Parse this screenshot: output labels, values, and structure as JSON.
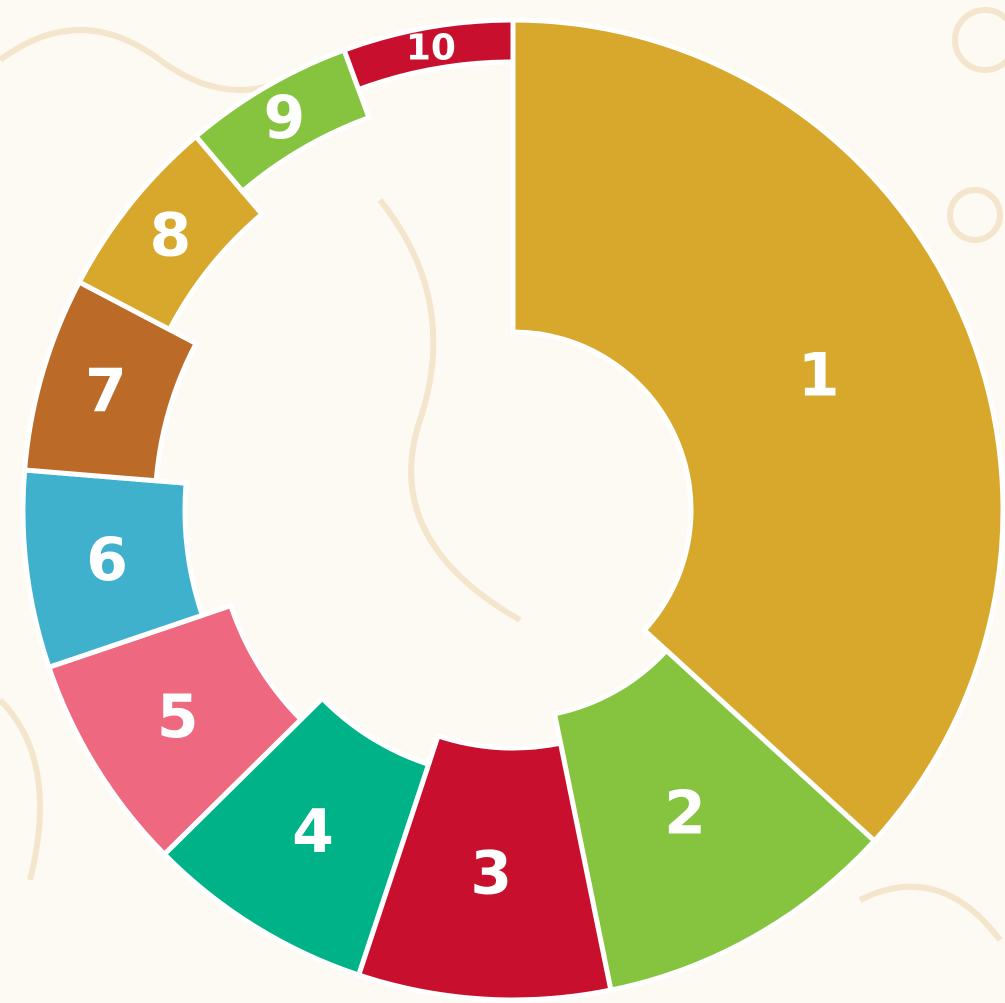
{
  "chart_data": {
    "type": "pie",
    "categories": [
      "1",
      "2",
      "3",
      "4",
      "5",
      "6",
      "7",
      "8",
      "9",
      "10"
    ],
    "values": [
      36.8,
      10,
      8.3,
      7.5,
      7.2,
      6.5,
      6.4,
      6.1,
      5.6,
      5.6
    ],
    "colors": [
      "#d7a82b",
      "#86c440",
      "#c8102e",
      "#00b287",
      "#ee6880",
      "#40b1cc",
      "#bb6a28",
      "#d7a82b",
      "#86c440",
      "#c8102e"
    ]
  }
}
